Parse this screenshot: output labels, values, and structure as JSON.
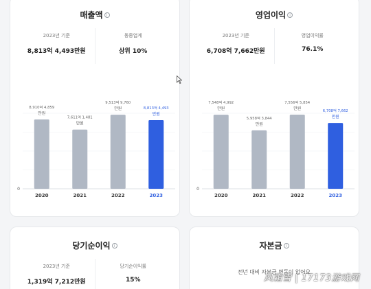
{
  "colors": {
    "bar_gray": "#b0b8c4",
    "bar_highlight": "#2f5fe0",
    "highlight_text": "#2f5fe0",
    "card_bg": "#ffffff",
    "page_bg": "#f4f5f7"
  },
  "cards": [
    {
      "title": "매출액",
      "stats": [
        {
          "label": "2023년 기준",
          "value": "8,813억 4,493만원"
        },
        {
          "label": "동종업계",
          "value": "상위 10%"
        }
      ],
      "chart_data": {
        "type": "bar",
        "unit": "억원",
        "categories": [
          "2020",
          "2021",
          "2022",
          "2023"
        ],
        "values": [
          8910.4859,
          7611.1481,
          9513.976,
          8813.4493
        ],
        "data_labels": [
          [
            "8,910억 4,859",
            "만원"
          ],
          [
            "7,611억 1,481",
            "만원"
          ],
          [
            "9,513억 9,760",
            "만원"
          ],
          [
            "8,813억 4,493",
            "만원"
          ]
        ],
        "highlight_index": 3,
        "y_zero_label": "0",
        "ylim": [
          0,
          9700
        ]
      }
    },
    {
      "title": "영업이익",
      "stats": [
        {
          "label": "2023년 기준",
          "value": "6,708억 7,662만원"
        },
        {
          "label": "영업이익률",
          "value": "76.1%"
        }
      ],
      "chart_data": {
        "type": "bar",
        "unit": "억원",
        "categories": [
          "2020",
          "2021",
          "2022",
          "2023"
        ],
        "values": [
          7548.4992,
          5958.3844,
          7556.5854,
          6708.7662
        ],
        "data_labels": [
          [
            "7,548억 4,992",
            "만원"
          ],
          [
            "5,958억 3,844",
            "만원"
          ],
          [
            "7,556억 5,854",
            "만원"
          ],
          [
            "6,708억 7,662",
            "만원"
          ]
        ],
        "highlight_index": 3,
        "y_zero_label": "0",
        "ylim": [
          0,
          7700
        ]
      }
    }
  ],
  "net_income": {
    "title": "당기순이익",
    "stats": [
      {
        "label": "2023년 기준",
        "value": "1,319억 7,212만원"
      },
      {
        "label": "당기순이익률",
        "value": "15%"
      }
    ]
  },
  "capital": {
    "title": "자본금",
    "sub_text": "전년 대비 자본금 변동이 없어요"
  },
  "watermark": "风霜雪 | 17173游戏网"
}
